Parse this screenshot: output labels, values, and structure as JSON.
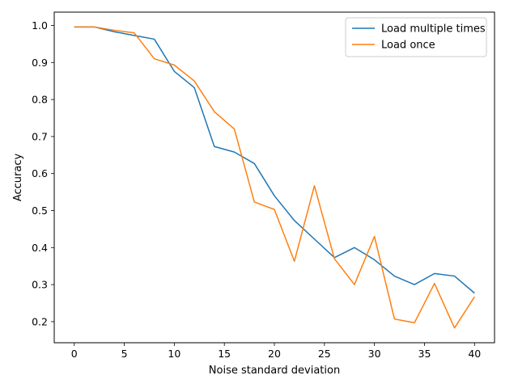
{
  "chart_data": {
    "type": "line",
    "title": "",
    "xlabel": "Noise standard deviation",
    "ylabel": "Accuracy",
    "xlim": [
      -2.0,
      42.0
    ],
    "ylim": [
      0.143,
      1.036
    ],
    "xticks": [
      0,
      5,
      10,
      15,
      20,
      25,
      30,
      35,
      40
    ],
    "yticks": [
      0.2,
      0.3,
      0.4,
      0.5,
      0.6,
      0.7,
      0.8,
      0.9,
      1.0
    ],
    "xtick_labels": [
      "0",
      "5",
      "10",
      "15",
      "20",
      "25",
      "30",
      "35",
      "40"
    ],
    "ytick_labels": [
      "0.2",
      "0.3",
      "0.4",
      "0.5",
      "0.6",
      "0.7",
      "0.8",
      "0.9",
      "1.0"
    ],
    "grid": false,
    "legend_position": "top-right",
    "x": [
      0,
      2,
      4,
      6,
      8,
      10,
      12,
      14,
      16,
      18,
      20,
      22,
      24,
      26,
      28,
      30,
      32,
      34,
      36,
      38,
      40
    ],
    "series": [
      {
        "name": "Load multiple times",
        "color": "#1f77b4",
        "values": [
          0.996,
          0.996,
          0.983,
          0.973,
          0.963,
          0.876,
          0.832,
          0.673,
          0.658,
          0.627,
          0.54,
          0.473,
          0.423,
          0.373,
          0.4,
          0.367,
          0.323,
          0.3,
          0.33,
          0.323,
          0.277
        ]
      },
      {
        "name": "Load once",
        "color": "#ff7f0e",
        "values": [
          0.996,
          0.996,
          0.987,
          0.98,
          0.91,
          0.893,
          0.85,
          0.767,
          0.72,
          0.523,
          0.503,
          0.363,
          0.567,
          0.37,
          0.3,
          0.43,
          0.207,
          0.197,
          0.303,
          0.183,
          0.267
        ]
      }
    ]
  }
}
